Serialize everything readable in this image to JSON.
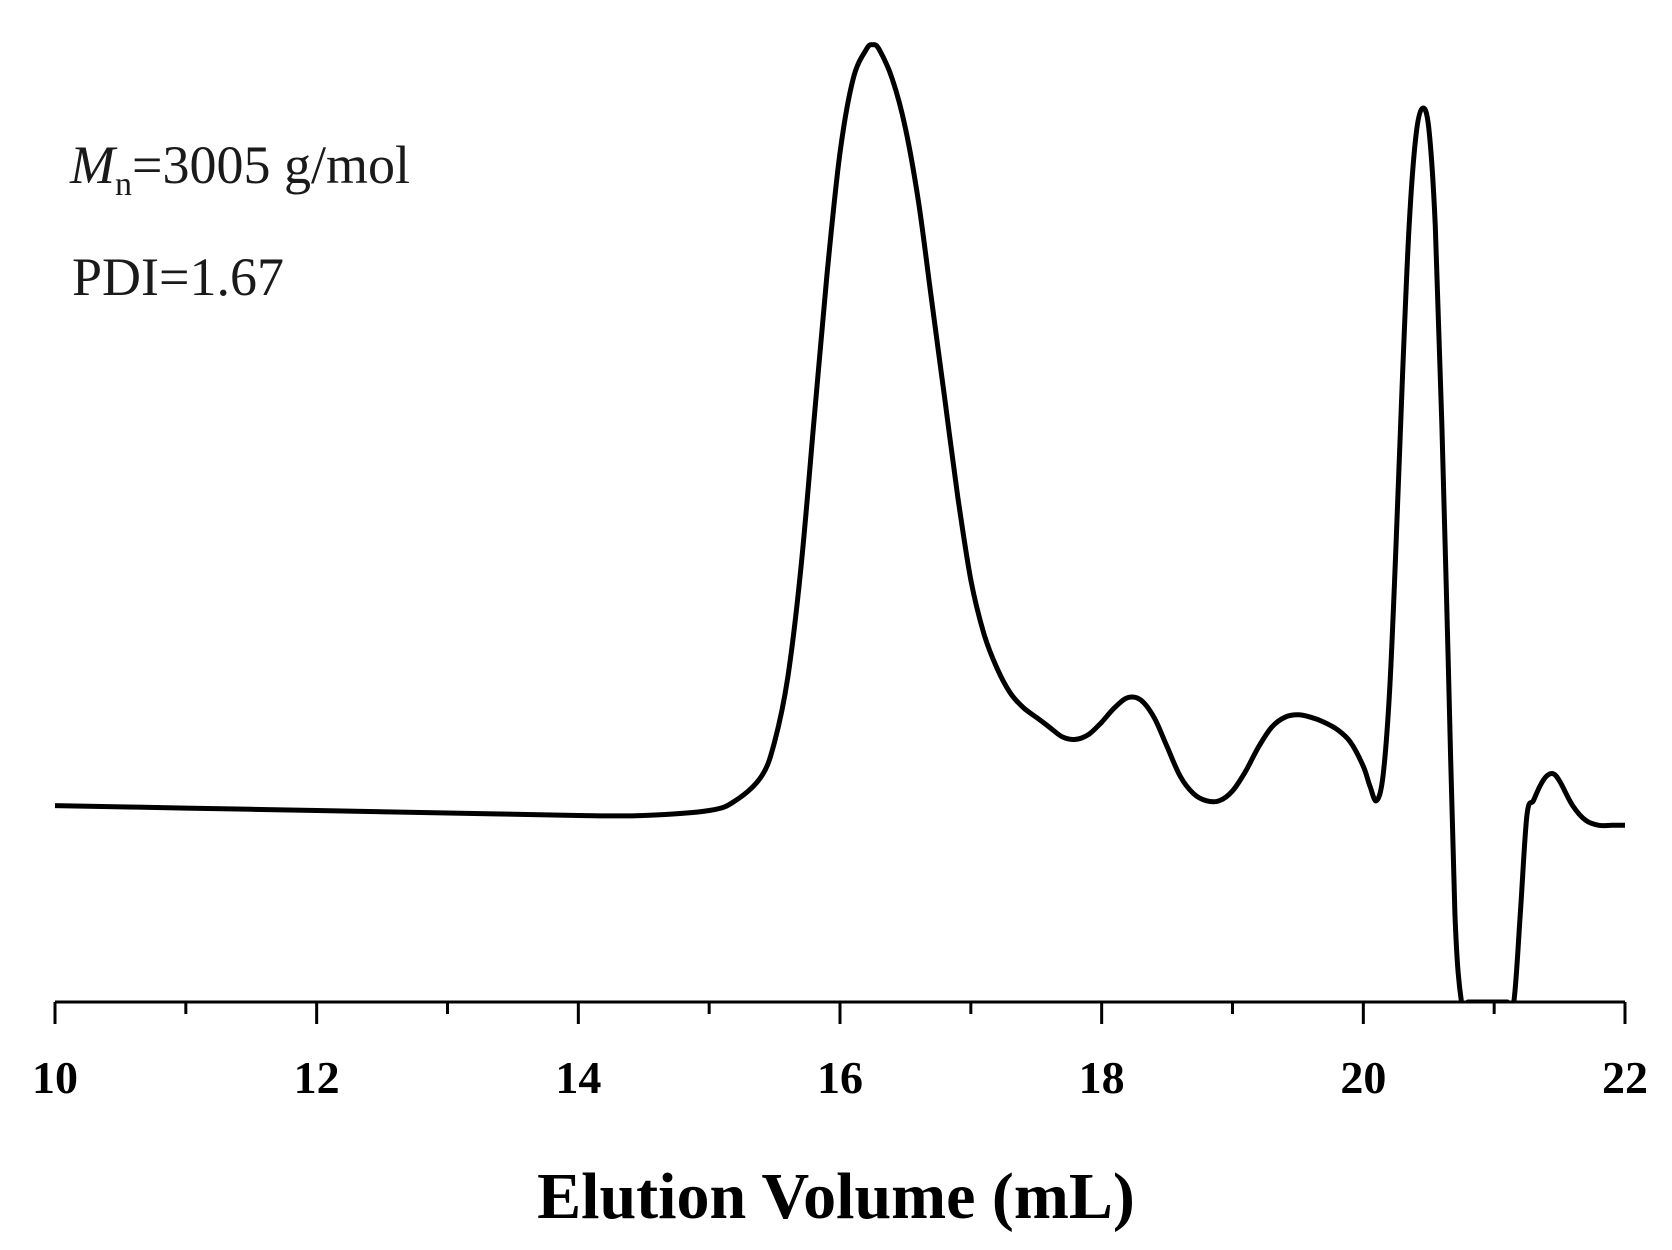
{
  "chart_data": {
    "type": "line",
    "title": "",
    "xlabel": "Elution Volume (mL)",
    "ylabel": "",
    "xlim": [
      10,
      22
    ],
    "ylim": [
      -0.38,
      1.6
    ],
    "x_ticks": [
      10,
      12,
      14,
      16,
      18,
      20,
      22
    ],
    "x_minor_step": 1,
    "y_axis_shown": false,
    "grid": false,
    "legend": "none",
    "line_color": "#000000",
    "annotations": {
      "mn_symbol": "M",
      "mn_subscript": "n",
      "mn_value": "=3005 g/mol",
      "pdi": "PDI=1.67"
    },
    "series": [
      {
        "x": [
          10.0,
          11.0,
          12.0,
          13.0,
          14.0,
          14.5,
          15.0,
          15.2,
          15.4,
          15.5,
          15.6,
          15.7,
          15.8,
          15.9,
          16.0,
          16.1,
          16.2,
          16.25,
          16.3,
          16.4,
          16.5,
          16.6,
          16.7,
          16.8,
          16.9,
          17.0,
          17.1,
          17.2,
          17.3,
          17.4,
          17.5,
          17.6,
          17.7,
          17.8,
          17.9,
          18.0,
          18.1,
          18.2,
          18.3,
          18.4,
          18.5,
          18.6,
          18.7,
          18.8,
          18.9,
          19.0,
          19.1,
          19.2,
          19.3,
          19.4,
          19.5,
          19.6,
          19.7,
          19.8,
          19.9,
          20.0,
          20.05,
          20.1,
          20.15,
          20.2,
          20.25,
          20.3,
          20.35,
          20.4,
          20.45,
          20.5,
          20.55,
          20.6,
          20.65,
          20.7,
          20.75,
          20.8,
          20.85,
          20.9,
          20.95,
          21.0,
          21.05,
          21.1,
          21.15,
          21.2,
          21.25,
          21.3,
          21.35,
          21.4,
          21.45,
          21.5,
          21.6,
          21.7,
          21.8,
          21.9,
          22.0
        ],
        "y": [
          0.02,
          0.015,
          0.01,
          0.005,
          0.0,
          0.0,
          0.01,
          0.03,
          0.08,
          0.15,
          0.28,
          0.5,
          0.8,
          1.1,
          1.35,
          1.5,
          1.56,
          1.57,
          1.56,
          1.5,
          1.4,
          1.25,
          1.05,
          0.85,
          0.65,
          0.48,
          0.37,
          0.3,
          0.25,
          0.22,
          0.2,
          0.18,
          0.16,
          0.155,
          0.165,
          0.19,
          0.22,
          0.24,
          0.235,
          0.2,
          0.14,
          0.08,
          0.045,
          0.03,
          0.03,
          0.05,
          0.09,
          0.14,
          0.18,
          0.2,
          0.205,
          0.2,
          0.19,
          0.175,
          0.15,
          0.1,
          0.06,
          0.03,
          0.08,
          0.25,
          0.55,
          0.9,
          1.2,
          1.38,
          1.44,
          1.4,
          1.2,
          0.8,
          0.3,
          -0.2,
          -0.38,
          -0.38,
          -0.38,
          -0.38,
          -0.38,
          -0.38,
          -0.38,
          -0.38,
          -0.38,
          -0.2,
          0.0,
          0.03,
          0.06,
          0.08,
          0.085,
          0.07,
          0.02,
          -0.01,
          -0.02,
          -0.02,
          -0.02
        ]
      }
    ]
  }
}
